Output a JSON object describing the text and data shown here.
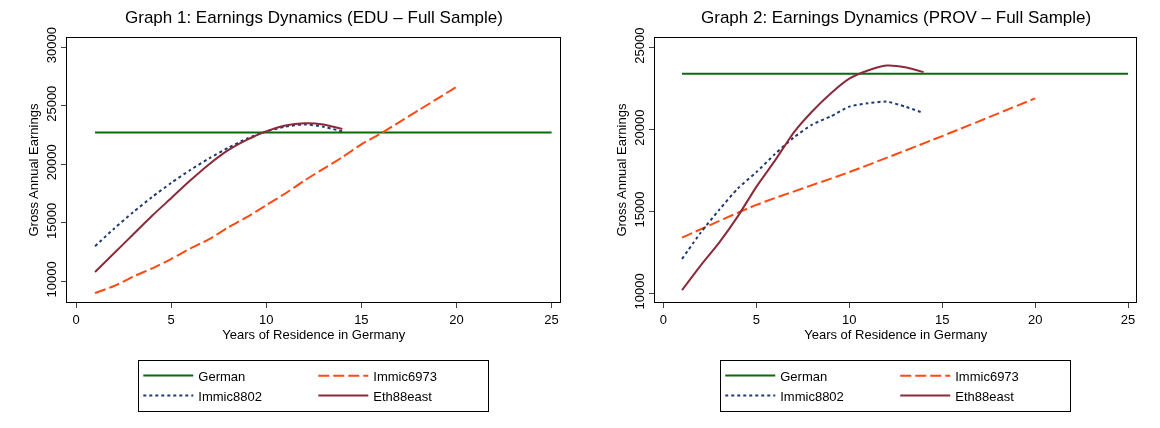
{
  "chart_data": [
    {
      "type": "line",
      "title": "Graph 1: Earnings Dynamics (EDU – Full Sample)",
      "xlabel": "Years of Residence in Germany",
      "ylabel": "Gross Annual Earnings",
      "xlim": [
        -0.45,
        25.45
      ],
      "xticks": [
        0,
        5,
        10,
        15,
        20,
        25
      ],
      "ylim": [
        8200,
        30800
      ],
      "yticks": [
        10000,
        15000,
        20000,
        25000,
        30000
      ],
      "legend": "bottom",
      "marker": "none",
      "series": [
        {
          "name": "German",
          "color": "#0b6b0b",
          "line_style": "solid",
          "x": [
            1,
            25
          ],
          "values": [
            22700,
            22700
          ]
        },
        {
          "name": "Immic6973",
          "color": "#ff4a12",
          "line_style": "dashed",
          "x": [
            1,
            2,
            3,
            4,
            5,
            6,
            7,
            8,
            9,
            10,
            11,
            12,
            13,
            14,
            15,
            16,
            17,
            18,
            19,
            20
          ],
          "values": [
            9000,
            9600,
            10400,
            11100,
            11900,
            12800,
            13600,
            14600,
            15500,
            16500,
            17500,
            18600,
            19600,
            20600,
            21700,
            22600,
            23600,
            24600,
            25600,
            26600
          ]
        },
        {
          "name": "Immic8802",
          "color": "#1f3a6e",
          "line_style": "dotted",
          "x": [
            1,
            2,
            3,
            4,
            5,
            6,
            7,
            8,
            9,
            10,
            11,
            12,
            13,
            14
          ],
          "values": [
            13000,
            14500,
            15900,
            17200,
            18400,
            19500,
            20500,
            21400,
            22200,
            22800,
            23200,
            23400,
            23200,
            22800
          ]
        },
        {
          "name": "Eth88east",
          "color": "#8b2a3a",
          "line_style": "solid",
          "x": [
            1,
            2,
            3,
            4,
            5,
            6,
            7,
            8,
            9,
            10,
            11,
            12,
            13,
            14
          ],
          "values": [
            10800,
            12400,
            14000,
            15600,
            17100,
            18600,
            20000,
            21200,
            22100,
            22800,
            23300,
            23500,
            23400,
            23000
          ]
        }
      ]
    },
    {
      "type": "line",
      "title": "Graph 2: Earnings Dynamics (PROV – Full Sample)",
      "xlabel": "Years of Residence in Germany",
      "ylabel": "Gross Annual Earnings",
      "xlim": [
        -0.45,
        25.45
      ],
      "xticks": [
        0,
        5,
        10,
        15,
        20,
        25
      ],
      "ylim": [
        9450,
        25600
      ],
      "yticks": [
        10000,
        15000,
        20000,
        25000
      ],
      "legend": "bottom",
      "marker": "none",
      "series": [
        {
          "name": "German",
          "color": "#0b6b0b",
          "line_style": "solid",
          "x": [
            1,
            25
          ],
          "values": [
            23400,
            23400
          ]
        },
        {
          "name": "Immic6973",
          "color": "#ff4a12",
          "line_style": "dashed",
          "x": [
            1,
            5,
            10,
            15,
            20
          ],
          "values": [
            13400,
            15400,
            17400,
            19600,
            21900
          ]
        },
        {
          "name": "Immic8802",
          "color": "#1f3a6e",
          "line_style": "dotted",
          "x": [
            1,
            2,
            3,
            4,
            5,
            6,
            7,
            8,
            9,
            10,
            11,
            12,
            13,
            14
          ],
          "values": [
            12100,
            13700,
            15100,
            16400,
            17400,
            18500,
            19500,
            20300,
            20800,
            21400,
            21600,
            21700,
            21400,
            21000
          ]
        },
        {
          "name": "Eth88east",
          "color": "#8b2a3a",
          "line_style": "solid",
          "x": [
            1,
            2,
            3,
            4,
            5,
            6,
            7,
            8,
            9,
            10,
            11,
            12,
            13,
            14
          ],
          "values": [
            10200,
            11700,
            13100,
            14700,
            16500,
            18100,
            19800,
            21100,
            22200,
            23100,
            23600,
            23900,
            23800,
            23500
          ]
        }
      ]
    }
  ]
}
